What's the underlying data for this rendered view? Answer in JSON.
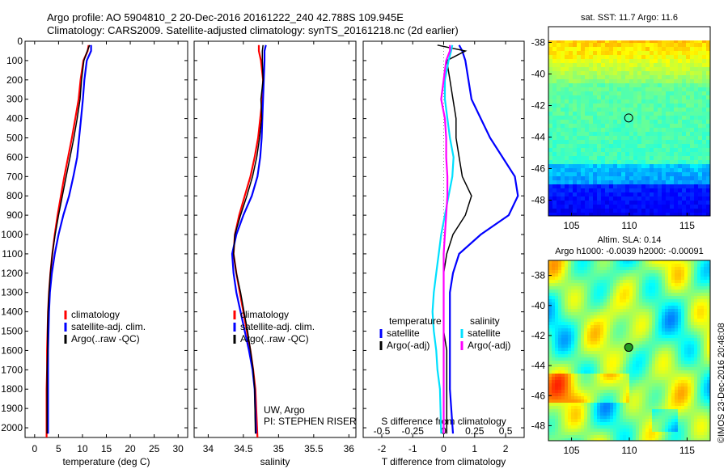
{
  "header": {
    "line1": "Argo profile: AO 5904810_2 20-Dec-2016 20161222_240 42.788S 109.945E",
    "line2": "Climatology: CARS2009. Satellite-adjusted climatology: synTS_20161218.nc (2d earlier)"
  },
  "stamp": "©IMOS 23-Dec-2016 20:48:08",
  "colors": {
    "climatology": "#ff0000",
    "satellite": "#0000ff",
    "argo": "#000000",
    "sat_salinity": "#00e0ff",
    "argo_salinity": "#ff00ff"
  },
  "chart_data": [
    {
      "type": "line",
      "xlabel": "temperature (deg C)",
      "ylabel": "",
      "xlim": [
        -2,
        32
      ],
      "ylim": [
        2050,
        0
      ],
      "xticks": [
        0,
        5,
        10,
        15,
        20,
        25,
        30
      ],
      "yticks": [
        0,
        100,
        200,
        300,
        400,
        500,
        600,
        700,
        800,
        900,
        1000,
        1100,
        1200,
        1300,
        1400,
        1500,
        1600,
        1700,
        1800,
        1900,
        2000
      ],
      "legend": {
        "placement": "lower-center",
        "entries": [
          "climatology",
          "satellite-adj. clim.",
          "Argo(..raw -QC)"
        ]
      },
      "series": [
        {
          "name": "climatology",
          "color": "#ff0000",
          "x": [
            11.3,
            11.1,
            10.2,
            9.6,
            9.2,
            8.5,
            7.8,
            7.0,
            6.2,
            5.5,
            4.8,
            4.2,
            3.7,
            3.3,
            3.0,
            2.8,
            2.7,
            2.6,
            2.6,
            2.5,
            2.5
          ],
          "y": [
            20,
            50,
            100,
            200,
            300,
            400,
            500,
            600,
            700,
            800,
            900,
            1000,
            1100,
            1200,
            1300,
            1400,
            1500,
            1600,
            1700,
            1800,
            2050
          ]
        },
        {
          "name": "satellite-adj. clim.",
          "color": "#0000ff",
          "x": [
            11.8,
            11.8,
            10.9,
            10.4,
            10.1,
            9.7,
            9.3,
            8.9,
            8.1,
            7.2,
            6.0,
            5.0,
            4.2,
            3.6,
            3.2,
            3.0,
            2.9,
            2.8,
            2.8,
            2.8,
            2.8
          ],
          "y": [
            20,
            50,
            100,
            200,
            300,
            400,
            500,
            600,
            700,
            800,
            900,
            1000,
            1100,
            1200,
            1300,
            1400,
            1500,
            1600,
            1700,
            1800,
            2030
          ]
        },
        {
          "name": "Argo(..raw -QC)",
          "color": "#000000",
          "x": [
            11.5,
            11.0,
            10.3,
            9.8,
            9.5,
            8.9,
            8.2,
            7.4,
            6.6,
            5.8,
            5.0,
            4.3,
            3.7,
            3.3,
            3.0,
            2.8,
            2.7,
            2.7,
            2.6,
            2.6,
            2.6
          ],
          "y": [
            20,
            50,
            100,
            200,
            300,
            400,
            500,
            600,
            700,
            800,
            900,
            1000,
            1100,
            1200,
            1300,
            1400,
            1500,
            1600,
            1700,
            1800,
            2030
          ]
        }
      ]
    },
    {
      "type": "line",
      "xlabel": "salinity",
      "ylabel": "",
      "xlim": [
        33.8,
        36.1
      ],
      "ylim": [
        2050,
        0
      ],
      "xticks": [
        34,
        34.5,
        35,
        35.5,
        36
      ],
      "legend": {
        "placement": "lower-center",
        "entries": [
          "climatology",
          "satellite-adj. clim.",
          "Argo(..raw -QC)"
        ]
      },
      "annotation": [
        "UW, Argo",
        "PI: STEPHEN RISER"
      ],
      "series": [
        {
          "name": "climatology",
          "color": "#ff0000",
          "x": [
            34.72,
            34.72,
            34.75,
            34.78,
            34.77,
            34.74,
            34.71,
            34.66,
            34.6,
            34.52,
            34.44,
            34.38,
            34.36,
            34.4,
            34.45,
            34.5,
            34.55,
            34.6,
            34.64,
            34.67,
            34.7
          ],
          "y": [
            20,
            50,
            100,
            200,
            300,
            400,
            500,
            600,
            700,
            800,
            900,
            1000,
            1100,
            1200,
            1300,
            1400,
            1500,
            1600,
            1700,
            1800,
            2050
          ]
        },
        {
          "name": "satellite-adj. clim.",
          "color": "#0000ff",
          "x": [
            34.82,
            34.8,
            34.8,
            34.79,
            34.78,
            34.77,
            34.76,
            34.74,
            34.7,
            34.62,
            34.5,
            34.4,
            34.34,
            34.36,
            34.4,
            34.46,
            34.52,
            34.58,
            34.63,
            34.66,
            34.68
          ],
          "y": [
            20,
            50,
            100,
            200,
            300,
            400,
            500,
            600,
            700,
            800,
            900,
            1000,
            1100,
            1200,
            1300,
            1400,
            1500,
            1600,
            1700,
            1800,
            2030
          ]
        },
        {
          "name": "Argo(..raw -QC)",
          "color": "#000000",
          "x": [
            34.78,
            34.77,
            34.77,
            34.78,
            34.75,
            34.76,
            34.73,
            34.69,
            34.63,
            34.55,
            34.46,
            34.38,
            34.36,
            34.4,
            34.46,
            34.51,
            34.56,
            34.6,
            34.64,
            34.66,
            34.67
          ],
          "y": [
            20,
            50,
            100,
            200,
            300,
            400,
            500,
            600,
            700,
            800,
            900,
            1000,
            1100,
            1200,
            1300,
            1400,
            1500,
            1600,
            1700,
            1800,
            2030
          ]
        }
      ]
    },
    {
      "type": "line",
      "xlabel": "T difference from climatology",
      "secondary_xlabel": "S difference from climatology",
      "xlim": [
        -2.6,
        2.6
      ],
      "ylim": [
        2050,
        0
      ],
      "xticks": [
        -2,
        -1,
        0,
        1,
        2
      ],
      "secondary_xticks": [
        "-0.5",
        "-0.25",
        "0",
        "0.25",
        "0.5"
      ],
      "legend": {
        "placement": "lower-center",
        "groups": [
          {
            "title": "temperature",
            "entries": [
              "satellite",
              "Argo(-adj)"
            ]
          },
          {
            "title": "salinity",
            "entries": [
              "satellite",
              "Argo(-adj)"
            ]
          }
        ]
      },
      "series": [
        {
          "name": "satellite",
          "group": "temperature",
          "color": "#0000ff",
          "x": [
            0.5,
            0.6,
            0.7,
            0.8,
            0.9,
            1.2,
            1.5,
            1.9,
            2.3,
            2.4,
            2.1,
            1.2,
            0.5,
            0.3,
            0.2,
            0.2,
            0.2,
            0.2,
            0.2,
            0.2,
            0.3
          ],
          "y": [
            20,
            50,
            100,
            200,
            300,
            400,
            500,
            600,
            700,
            800,
            900,
            1000,
            1100,
            1200,
            1300,
            1400,
            1500,
            1600,
            1700,
            1800,
            2030
          ]
        },
        {
          "name": "Argo(-adj)",
          "group": "temperature",
          "color": "#000000",
          "x": [
            -0.2,
            0.7,
            0.1,
            0.2,
            0.3,
            0.4,
            0.4,
            0.5,
            0.6,
            0.9,
            0.7,
            0.3,
            0.1,
            0.0,
            0.0,
            0.0,
            0.0,
            0.1,
            0.1,
            0.1,
            0.1
          ],
          "y": [
            20,
            50,
            100,
            200,
            300,
            400,
            500,
            600,
            700,
            800,
            900,
            1000,
            1100,
            1200,
            1300,
            1400,
            1500,
            1600,
            1700,
            1800,
            2030
          ]
        },
        {
          "name": "satellite",
          "group": "salinity",
          "color": "#00e0ff",
          "x": [
            0.07,
            0.06,
            0.04,
            0.01,
            0.01,
            0.03,
            0.05,
            0.08,
            0.07,
            0.04,
            0.01,
            -0.02,
            -0.04,
            -0.06,
            -0.08,
            -0.09,
            -0.08,
            -0.06,
            -0.05,
            -0.03,
            -0.02
          ],
          "y": [
            20,
            50,
            100,
            200,
            300,
            400,
            500,
            600,
            700,
            800,
            900,
            1000,
            1100,
            1200,
            1300,
            1400,
            1500,
            1600,
            1700,
            1800,
            2030
          ]
        },
        {
          "name": "Argo(-adj)",
          "group": "salinity",
          "color": "#ff00ff",
          "x": [
            0.05,
            0.05,
            0.02,
            0.0,
            -0.02,
            0.01,
            0.02,
            0.02,
            0.03,
            0.03,
            0.02,
            0.01,
            0.0,
            0.0,
            0.0,
            0.0,
            0.0,
            0.0,
            0.0,
            0.0,
            0.0
          ],
          "y": [
            20,
            50,
            100,
            200,
            300,
            400,
            500,
            600,
            700,
            800,
            900,
            1000,
            1100,
            1200,
            1300,
            1400,
            1500,
            1600,
            1700,
            1800,
            2030
          ]
        }
      ]
    },
    {
      "type": "heatmap",
      "title": "sat. SST: 11.7 Argo: 11.6",
      "xlim": [
        103,
        117
      ],
      "ylim": [
        -49,
        -37
      ],
      "xticks": [
        105,
        110,
        115
      ],
      "yticks": [
        -38,
        -40,
        -42,
        -44,
        -46,
        -48
      ],
      "marker": {
        "lon": 109.945,
        "lat": -42.788
      }
    },
    {
      "type": "heatmap",
      "title": "Altim. SLA: 0.14",
      "subtitle": "Argo h1000: -0.0039 h2000: -0.00091",
      "xlim": [
        103,
        117
      ],
      "ylim": [
        -49,
        -37
      ],
      "xticks": [
        105,
        110,
        115
      ],
      "yticks": [
        -38,
        -40,
        -42,
        -44,
        -46,
        -48
      ],
      "marker": {
        "lon": 109.945,
        "lat": -42.788
      }
    }
  ]
}
